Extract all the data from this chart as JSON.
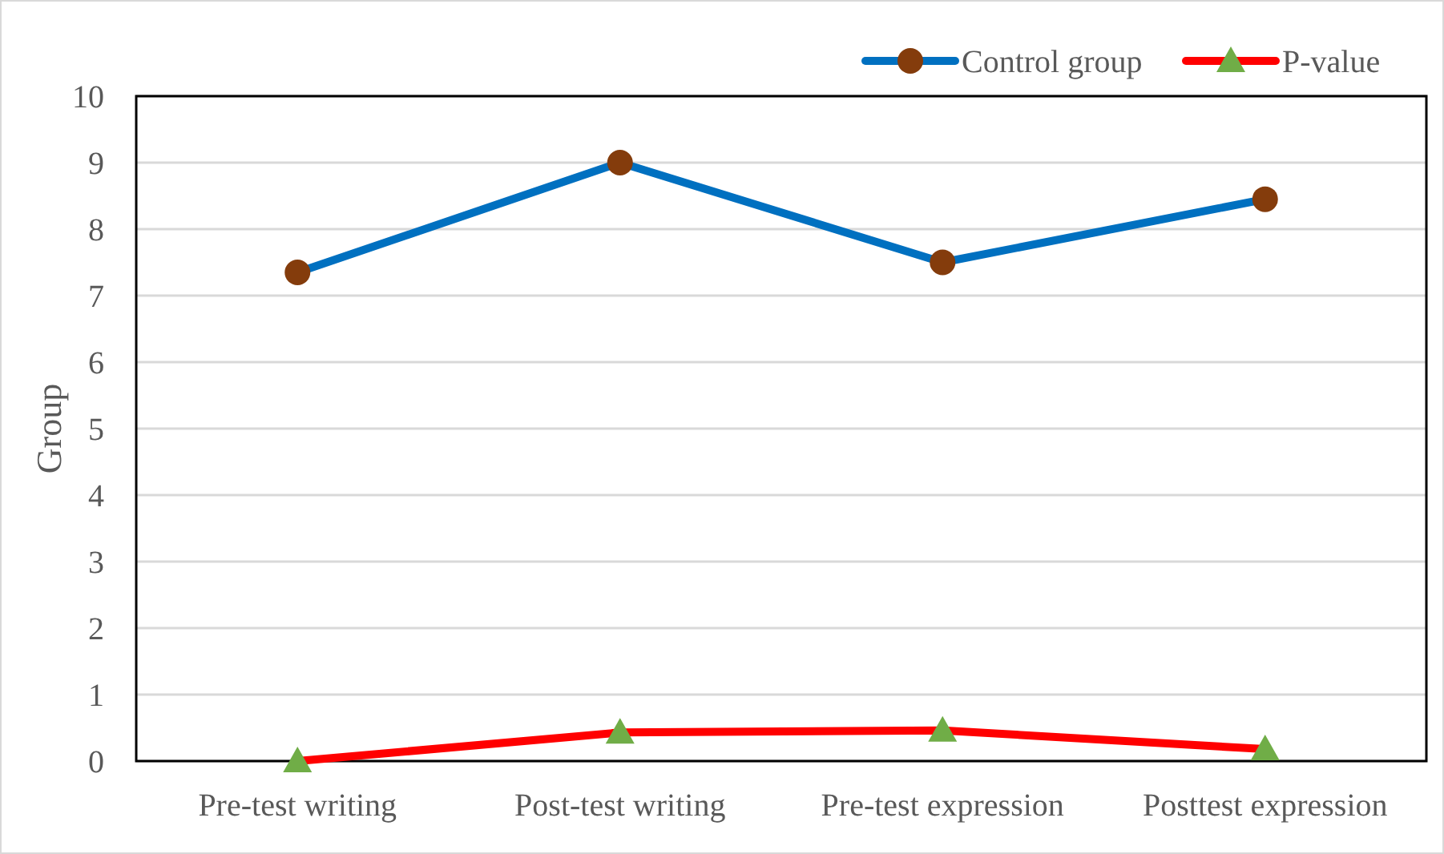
{
  "chart_data": {
    "type": "line",
    "ylabel": "Group",
    "categories": [
      "Pre-test writing",
      "Post-test writing",
      "Pre-test expression",
      "Posttest expression"
    ],
    "series": [
      {
        "name": "Control group",
        "color": "#0070c0",
        "marker": "circle",
        "colors": [
          "#843c0c",
          "#843c0c",
          "#843c0c",
          "#843c0c"
        ],
        "values": [
          7.35,
          9.0,
          7.5,
          8.45
        ]
      },
      {
        "name": "P-value",
        "color": "#ff0000",
        "marker": "triangle",
        "colors": [
          "#70ad47",
          "#70ad47",
          "#70ad47",
          "#70ad47"
        ],
        "values": [
          0.0,
          0.43,
          0.46,
          0.18
        ]
      }
    ],
    "ylim": [
      0,
      10
    ],
    "yticks": [
      0,
      1,
      2,
      3,
      4,
      5,
      6,
      7,
      8,
      9,
      10
    ],
    "grid": "y",
    "legend": "top right"
  }
}
